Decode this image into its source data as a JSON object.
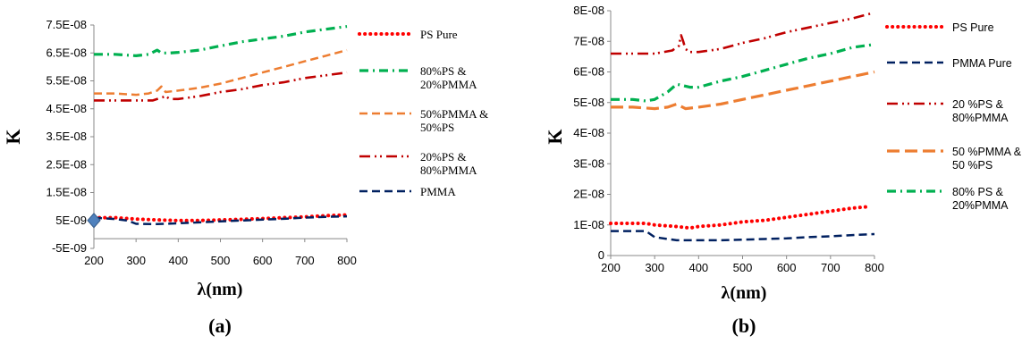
{
  "chart_data": [
    {
      "type": "line",
      "panel_label": "(a)",
      "xlabel": "λ(nm)",
      "ylabel": "K",
      "xlim": [
        200,
        800
      ],
      "ylim": [
        -5e-09,
        7.5e-08
      ],
      "xticks": [
        "200",
        "300",
        "400",
        "500",
        "600",
        "700",
        "800"
      ],
      "yticks": [
        "-5E-09",
        "5E-09",
        "1.5E-08",
        "2.5E-08",
        "3.5E-08",
        "4.5E-08",
        "5.5E-08",
        "6.5E-08",
        "7.5E-08"
      ],
      "legend_position": "right",
      "series": [
        {
          "name": "PS Pure",
          "color": "#ff0000",
          "style": "dotted",
          "x": [
            200,
            250,
            300,
            350,
            400,
            450,
            500,
            550,
            600,
            650,
            700,
            750,
            800
          ],
          "y": [
            6e-09,
            6e-09,
            5.5e-09,
            5.2e-09,
            5e-09,
            5e-09,
            5.2e-09,
            5.4e-09,
            5.7e-09,
            6e-09,
            6.3e-09,
            6.7e-09,
            7e-09
          ]
        },
        {
          "name": "80%PS & 20%PMMA",
          "color": "#00b050",
          "style": "dashdot",
          "x": [
            200,
            250,
            300,
            330,
            350,
            360,
            380,
            400,
            450,
            500,
            550,
            600,
            650,
            700,
            750,
            800
          ],
          "y": [
            6.45e-08,
            6.45e-08,
            6.4e-08,
            6.45e-08,
            6.6e-08,
            6.5e-08,
            6.5e-08,
            6.52e-08,
            6.6e-08,
            6.75e-08,
            6.9e-08,
            7e-08,
            7.1e-08,
            7.25e-08,
            7.35e-08,
            7.45e-08
          ]
        },
        {
          "name": "50%PMMA & 50%PS",
          "color": "#ed7d31",
          "style": "dashed",
          "x": [
            200,
            250,
            300,
            330,
            350,
            360,
            370,
            400,
            450,
            500,
            550,
            600,
            650,
            700,
            750,
            800
          ],
          "y": [
            5.05e-08,
            5.05e-08,
            5e-08,
            5.05e-08,
            5.15e-08,
            5.3e-08,
            5.1e-08,
            5.15e-08,
            5.25e-08,
            5.4e-08,
            5.6e-08,
            5.8e-08,
            6e-08,
            6.2e-08,
            6.4e-08,
            6.6e-08
          ]
        },
        {
          "name": "20%PS & 80%PMMA",
          "color": "#c00000",
          "style": "dashdotdot",
          "x": [
            200,
            250,
            300,
            340,
            360,
            370,
            380,
            400,
            450,
            500,
            550,
            600,
            650,
            700,
            750,
            800
          ],
          "y": [
            4.8e-08,
            4.8e-08,
            4.8e-08,
            4.8e-08,
            4.9e-08,
            4.95e-08,
            4.85e-08,
            4.85e-08,
            4.95e-08,
            5.1e-08,
            5.2e-08,
            5.35e-08,
            5.45e-08,
            5.6e-08,
            5.7e-08,
            5.8e-08
          ]
        },
        {
          "name": "PMMA",
          "color": "#002060",
          "style": "dashed",
          "x": [
            200,
            250,
            280,
            300,
            350,
            400,
            450,
            500,
            550,
            600,
            650,
            700,
            750,
            800
          ],
          "y": [
            6e-09,
            5.5e-09,
            5e-09,
            3.8e-09,
            3.7e-09,
            4e-09,
            4.3e-09,
            4.7e-09,
            5e-09,
            5.3e-09,
            5.6e-09,
            6e-09,
            6.3e-09,
            6.5e-09
          ]
        }
      ]
    },
    {
      "type": "line",
      "panel_label": "(b)",
      "xlabel": "λ(nm)",
      "ylabel": "K",
      "xlim": [
        200,
        800
      ],
      "ylim": [
        0,
        8e-08
      ],
      "xticks": [
        "200",
        "300",
        "400",
        "500",
        "600",
        "700",
        "800"
      ],
      "yticks": [
        "0",
        "1E-08",
        "2E-08",
        "3E-08",
        "4E-08",
        "5E-08",
        "6E-08",
        "7E-08",
        "8E-08"
      ],
      "legend_position": "right",
      "series": [
        {
          "name": "PS Pure",
          "color": "#ff0000",
          "style": "dotted",
          "x": [
            200,
            250,
            280,
            300,
            350,
            380,
            400,
            450,
            500,
            550,
            600,
            650,
            700,
            750,
            790
          ],
          "y": [
            1.05e-08,
            1.05e-08,
            1.05e-08,
            1e-08,
            9.5e-09,
            9e-09,
            9.5e-09,
            1e-08,
            1.1e-08,
            1.15e-08,
            1.25e-08,
            1.35e-08,
            1.45e-08,
            1.55e-08,
            1.6e-08
          ]
        },
        {
          "name": "PMMA Pure",
          "color": "#002060",
          "style": "dashed",
          "x": [
            200,
            250,
            280,
            300,
            350,
            400,
            450,
            500,
            550,
            600,
            650,
            700,
            750,
            800
          ],
          "y": [
            8e-09,
            8e-09,
            8e-09,
            6e-09,
            5e-09,
            5e-09,
            5e-09,
            5.2e-09,
            5.4e-09,
            5.6e-09,
            6e-09,
            6.3e-09,
            6.7e-09,
            7e-09
          ]
        },
        {
          "name": "20 %PS & 80%PMMA",
          "color": "#c00000",
          "style": "dashdotdot",
          "x": [
            200,
            250,
            300,
            340,
            355,
            360,
            365,
            370,
            380,
            400,
            450,
            500,
            550,
            600,
            650,
            700,
            750,
            790
          ],
          "y": [
            6.6e-08,
            6.6e-08,
            6.6e-08,
            6.7e-08,
            6.85e-08,
            7.2e-08,
            7e-08,
            6.75e-08,
            6.65e-08,
            6.65e-08,
            6.75e-08,
            6.95e-08,
            7.1e-08,
            7.3e-08,
            7.45e-08,
            7.6e-08,
            7.75e-08,
            7.9e-08
          ]
        },
        {
          "name": "50 %PMMA & 50 %PS",
          "color": "#ed7d31",
          "style": "dashed-long",
          "x": [
            200,
            250,
            300,
            330,
            350,
            370,
            400,
            450,
            500,
            550,
            600,
            650,
            700,
            750,
            800
          ],
          "y": [
            4.85e-08,
            4.85e-08,
            4.8e-08,
            4.85e-08,
            4.95e-08,
            4.8e-08,
            4.85e-08,
            4.95e-08,
            5.1e-08,
            5.25e-08,
            5.4e-08,
            5.55e-08,
            5.7e-08,
            5.85e-08,
            6e-08
          ]
        },
        {
          "name": "80% PS & 20%PMMA",
          "color": "#00b050",
          "style": "dashdot",
          "x": [
            200,
            250,
            280,
            300,
            330,
            350,
            380,
            400,
            450,
            500,
            550,
            600,
            650,
            700,
            750,
            800
          ],
          "y": [
            5.1e-08,
            5.1e-08,
            5.05e-08,
            5.1e-08,
            5.35e-08,
            5.6e-08,
            5.5e-08,
            5.5e-08,
            5.7e-08,
            5.85e-08,
            6.05e-08,
            6.25e-08,
            6.45e-08,
            6.6e-08,
            6.8e-08,
            6.9e-08
          ]
        }
      ]
    }
  ]
}
